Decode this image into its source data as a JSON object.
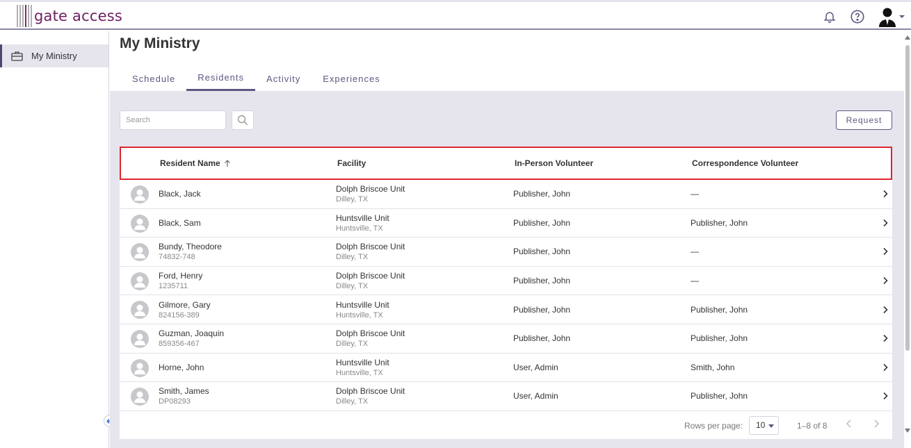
{
  "app": {
    "logo_text": "gate access"
  },
  "sidebar": {
    "items": [
      {
        "label": "My Ministry",
        "icon": "briefcase-icon"
      }
    ]
  },
  "page": {
    "title": "My Ministry"
  },
  "tabs": [
    {
      "label": "Schedule",
      "active": false
    },
    {
      "label": "Residents",
      "active": true
    },
    {
      "label": "Activity",
      "active": false
    },
    {
      "label": "Experiences",
      "active": false
    }
  ],
  "toolbar": {
    "search_placeholder": "Search",
    "request_label": "Request"
  },
  "table": {
    "columns": [
      "Resident Name",
      "Facility",
      "In-Person Volunteer",
      "Correspondence Volunteer"
    ],
    "sort_column": "Resident Name",
    "sort_direction": "ascending",
    "rows": [
      {
        "name": "Black, Jack",
        "id": "",
        "facility": "Dolph Briscoe Unit",
        "location": "Dilley, TX",
        "in_person": "Publisher, John",
        "correspondence": "—"
      },
      {
        "name": "Black, Sam",
        "id": "",
        "facility": "Huntsville Unit",
        "location": "Huntsville, TX",
        "in_person": "Publisher, John",
        "correspondence": "Publisher, John"
      },
      {
        "name": "Bundy, Theodore",
        "id": "74832-748",
        "facility": "Dolph Briscoe Unit",
        "location": "Dilley, TX",
        "in_person": "Publisher, John",
        "correspondence": "—"
      },
      {
        "name": "Ford, Henry",
        "id": "1235711",
        "facility": "Dolph Briscoe Unit",
        "location": "Dilley, TX",
        "in_person": "Publisher, John",
        "correspondence": "—"
      },
      {
        "name": "Gilmore, Gary",
        "id": "824156-389",
        "facility": "Huntsville Unit",
        "location": "Huntsville, TX",
        "in_person": "Publisher, John",
        "correspondence": "Publisher, John"
      },
      {
        "name": "Guzman, Joaquin",
        "id": "859356-467",
        "facility": "Dolph Briscoe Unit",
        "location": "Dilley, TX",
        "in_person": "Publisher, John",
        "correspondence": "Publisher, John"
      },
      {
        "name": "Horne, John",
        "id": "",
        "facility": "Huntsville Unit",
        "location": "Huntsville, TX",
        "in_person": "User, Admin",
        "correspondence": "Smith, John"
      },
      {
        "name": "Smith, James",
        "id": "DP08293",
        "facility": "Dolph Briscoe Unit",
        "location": "Dilley, TX",
        "in_person": "User, Admin",
        "correspondence": "Publisher, John"
      }
    ]
  },
  "pagination": {
    "rows_per_page_label": "Rows per page:",
    "rows_per_page_value": "10",
    "range_text": "1–8 of 8"
  },
  "colors": {
    "accent": "#5b5982",
    "brand": "#6d1f62",
    "highlight_border": "#e0242b",
    "content_bg": "#e6e5ee"
  }
}
